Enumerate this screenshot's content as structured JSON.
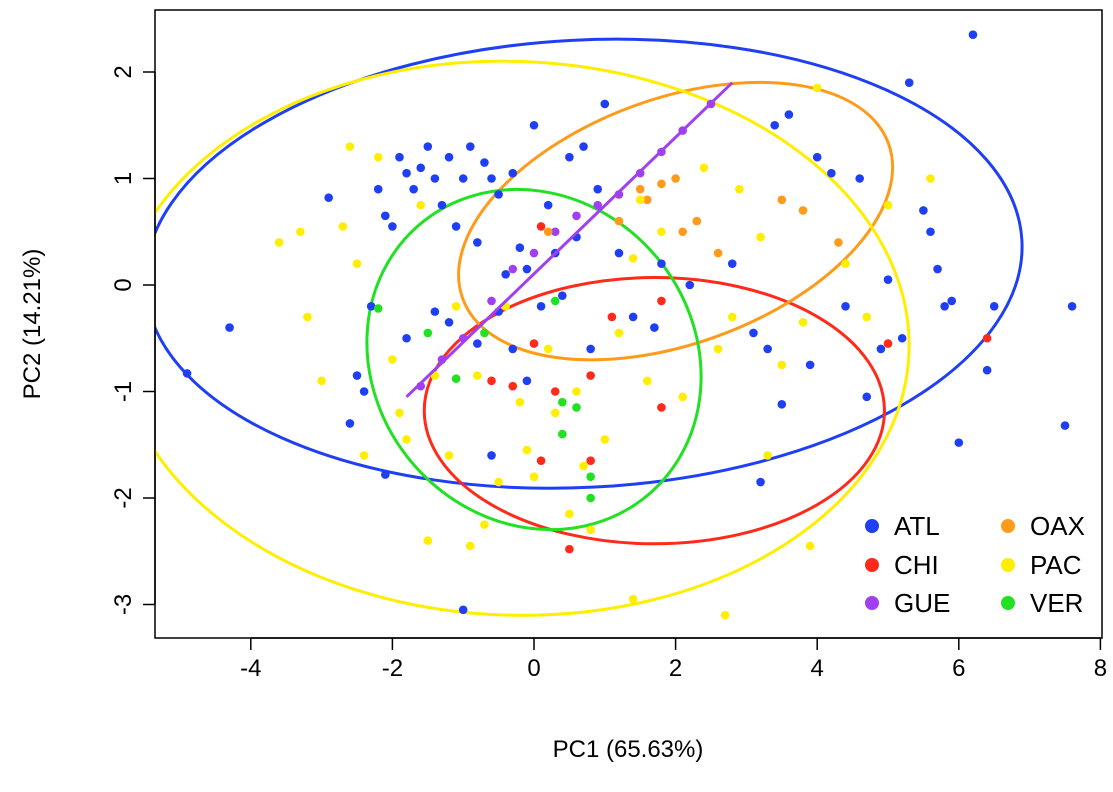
{
  "chart_data": {
    "type": "scatter",
    "title": "",
    "xlabel": "PC1 (65.63%)",
    "ylabel": "PC2 (14.21%)",
    "xlim": [
      -5.4,
      8.0
    ],
    "ylim": [
      -3.3,
      2.5
    ],
    "x_ticks": [
      -4,
      -2,
      0,
      2,
      4,
      6,
      8
    ],
    "y_ticks": [
      2,
      1,
      0,
      -1,
      -2,
      -3
    ],
    "grid": false,
    "legend_position": "bottom-right",
    "legend": [
      {
        "label": "ATL",
        "color": "#1f3ff5"
      },
      {
        "label": "CHI",
        "color": "#ff2a1a"
      },
      {
        "label": "GUE",
        "color": "#a040f0"
      },
      {
        "label": "OAX",
        "color": "#ff9a1a"
      },
      {
        "label": "PAC",
        "color": "#ffee00"
      },
      {
        "label": "VER",
        "color": "#22e022"
      }
    ],
    "series": [
      {
        "name": "ATL",
        "color": "#1f3ff5",
        "points": [
          [
            -4.9,
            -0.83
          ],
          [
            -4.3,
            -0.4
          ],
          [
            -2.9,
            0.82
          ],
          [
            -2.6,
            -1.3
          ],
          [
            -2.5,
            -0.85
          ],
          [
            -2.4,
            -1.0
          ],
          [
            -2.3,
            -0.2
          ],
          [
            -2.2,
            0.9
          ],
          [
            -2.1,
            0.65
          ],
          [
            -2.1,
            -1.78
          ],
          [
            -2.0,
            0.55
          ],
          [
            -1.9,
            1.2
          ],
          [
            -1.8,
            1.05
          ],
          [
            -1.8,
            -0.5
          ],
          [
            -1.7,
            0.9
          ],
          [
            -1.6,
            1.1
          ],
          [
            -1.5,
            1.3
          ],
          [
            -1.4,
            1.0
          ],
          [
            -1.4,
            -0.25
          ],
          [
            -1.3,
            0.75
          ],
          [
            -1.2,
            1.2
          ],
          [
            -1.2,
            -0.35
          ],
          [
            -1.1,
            0.55
          ],
          [
            -1.0,
            1.0
          ],
          [
            -1.0,
            -3.05
          ],
          [
            -0.9,
            1.3
          ],
          [
            -0.8,
            0.4
          ],
          [
            -0.8,
            -0.55
          ],
          [
            -0.7,
            1.15
          ],
          [
            -0.6,
            1.0
          ],
          [
            -0.6,
            -1.6
          ],
          [
            -0.5,
            0.85
          ],
          [
            -0.5,
            -0.25
          ],
          [
            -0.4,
            0.1
          ],
          [
            -0.3,
            1.05
          ],
          [
            -0.3,
            -0.6
          ],
          [
            -0.2,
            0.35
          ],
          [
            -0.1,
            0.15
          ],
          [
            -0.1,
            -0.9
          ],
          [
            0.0,
            1.5
          ],
          [
            0.1,
            -0.2
          ],
          [
            0.2,
            0.75
          ],
          [
            0.3,
            0.3
          ],
          [
            0.4,
            -0.1
          ],
          [
            0.5,
            1.2
          ],
          [
            0.6,
            0.45
          ],
          [
            0.7,
            1.3
          ],
          [
            0.8,
            -0.6
          ],
          [
            0.9,
            0.9
          ],
          [
            1.0,
            1.7
          ],
          [
            1.2,
            0.3
          ],
          [
            1.4,
            -0.3
          ],
          [
            1.7,
            -0.4
          ],
          [
            1.8,
            0.2
          ],
          [
            2.2,
            0.0
          ],
          [
            2.8,
            0.2
          ],
          [
            3.1,
            -0.45
          ],
          [
            3.2,
            -1.85
          ],
          [
            3.3,
            -0.6
          ],
          [
            3.4,
            1.5
          ],
          [
            3.5,
            -1.12
          ],
          [
            3.6,
            1.6
          ],
          [
            3.9,
            -0.75
          ],
          [
            4.0,
            1.2
          ],
          [
            4.2,
            1.05
          ],
          [
            4.4,
            -0.2
          ],
          [
            4.6,
            1.0
          ],
          [
            4.7,
            -1.05
          ],
          [
            4.9,
            -0.6
          ],
          [
            5.0,
            0.05
          ],
          [
            5.2,
            -0.5
          ],
          [
            5.3,
            1.9
          ],
          [
            5.5,
            0.7
          ],
          [
            5.6,
            0.5
          ],
          [
            5.7,
            0.15
          ],
          [
            5.8,
            -0.2
          ],
          [
            5.9,
            -0.15
          ],
          [
            6.0,
            -1.48
          ],
          [
            6.2,
            2.35
          ],
          [
            6.4,
            -0.8
          ],
          [
            6.5,
            -0.2
          ],
          [
            7.5,
            -1.32
          ],
          [
            7.6,
            -0.2
          ]
        ]
      },
      {
        "name": "CHI",
        "color": "#ff2a1a",
        "points": [
          [
            -0.6,
            -0.9
          ],
          [
            -0.3,
            -0.95
          ],
          [
            0.1,
            -1.65
          ],
          [
            0.0,
            -0.55
          ],
          [
            0.1,
            0.55
          ],
          [
            0.3,
            -1.0
          ],
          [
            0.5,
            -2.48
          ],
          [
            0.8,
            -1.65
          ],
          [
            0.8,
            -0.85
          ],
          [
            1.1,
            -0.3
          ],
          [
            1.8,
            -0.15
          ],
          [
            1.8,
            -1.15
          ],
          [
            5.0,
            -0.55
          ],
          [
            6.4,
            -0.5
          ]
        ]
      },
      {
        "name": "GUE",
        "color": "#a040f0",
        "points": [
          [
            -1.6,
            -0.95
          ],
          [
            -1.3,
            -0.7
          ],
          [
            -1.0,
            -0.5
          ],
          [
            -0.6,
            -0.15
          ],
          [
            -0.3,
            0.15
          ],
          [
            0.0,
            0.3
          ],
          [
            0.3,
            0.5
          ],
          [
            0.6,
            0.65
          ],
          [
            0.9,
            0.75
          ],
          [
            1.2,
            0.85
          ],
          [
            1.5,
            1.05
          ],
          [
            1.8,
            1.25
          ],
          [
            2.1,
            1.45
          ],
          [
            2.5,
            1.7
          ]
        ]
      },
      {
        "name": "OAX",
        "color": "#ff9a1a",
        "points": [
          [
            0.2,
            0.5
          ],
          [
            1.2,
            0.6
          ],
          [
            1.5,
            0.9
          ],
          [
            1.6,
            0.8
          ],
          [
            1.8,
            0.95
          ],
          [
            2.0,
            1.0
          ],
          [
            2.1,
            0.5
          ],
          [
            2.3,
            0.6
          ],
          [
            2.6,
            0.3
          ],
          [
            3.5,
            0.8
          ],
          [
            3.8,
            0.7
          ],
          [
            4.3,
            0.4
          ]
        ]
      },
      {
        "name": "PAC",
        "color": "#ffee00",
        "points": [
          [
            -3.6,
            0.4
          ],
          [
            -3.3,
            0.5
          ],
          [
            -3.2,
            -0.3
          ],
          [
            -3.0,
            -0.9
          ],
          [
            -2.7,
            0.55
          ],
          [
            -2.6,
            1.3
          ],
          [
            -2.5,
            0.2
          ],
          [
            -2.4,
            -1.6
          ],
          [
            -2.2,
            1.2
          ],
          [
            -2.0,
            -0.7
          ],
          [
            -1.9,
            -1.2
          ],
          [
            -1.8,
            -1.45
          ],
          [
            -1.6,
            0.75
          ],
          [
            -1.5,
            -2.4
          ],
          [
            -1.4,
            -0.85
          ],
          [
            -1.2,
            -1.6
          ],
          [
            -1.1,
            -0.2
          ],
          [
            -0.9,
            -2.45
          ],
          [
            -0.8,
            -0.85
          ],
          [
            -0.7,
            -2.25
          ],
          [
            -0.5,
            -1.85
          ],
          [
            -0.4,
            -0.2
          ],
          [
            -0.2,
            -1.1
          ],
          [
            -0.1,
            -1.55
          ],
          [
            0.0,
            -1.8
          ],
          [
            0.2,
            -0.6
          ],
          [
            0.3,
            -1.2
          ],
          [
            0.5,
            -2.15
          ],
          [
            0.6,
            -1.0
          ],
          [
            0.7,
            -1.7
          ],
          [
            0.8,
            -2.3
          ],
          [
            1.0,
            -1.45
          ],
          [
            1.2,
            -0.45
          ],
          [
            1.4,
            0.25
          ],
          [
            1.5,
            0.8
          ],
          [
            1.6,
            -0.9
          ],
          [
            1.8,
            0.5
          ],
          [
            2.1,
            -1.05
          ],
          [
            2.4,
            1.1
          ],
          [
            2.6,
            -0.6
          ],
          [
            2.8,
            -0.3
          ],
          [
            2.9,
            0.9
          ],
          [
            3.2,
            0.45
          ],
          [
            3.3,
            -1.6
          ],
          [
            3.5,
            -0.75
          ],
          [
            3.8,
            -0.35
          ],
          [
            3.9,
            -2.45
          ],
          [
            4.0,
            1.85
          ],
          [
            4.4,
            0.2
          ],
          [
            4.7,
            -0.3
          ],
          [
            5.0,
            0.75
          ],
          [
            5.6,
            1.0
          ],
          [
            1.4,
            -2.95
          ],
          [
            2.7,
            -3.1
          ]
        ]
      },
      {
        "name": "VER",
        "color": "#22e022",
        "points": [
          [
            -2.2,
            -0.22
          ],
          [
            -1.5,
            -0.45
          ],
          [
            -1.1,
            -0.88
          ],
          [
            -0.7,
            -0.45
          ],
          [
            0.3,
            -0.15
          ],
          [
            0.4,
            -1.1
          ],
          [
            0.6,
            -1.15
          ],
          [
            0.8,
            -2.0
          ],
          [
            0.8,
            -1.8
          ],
          [
            0.4,
            -1.4
          ]
        ]
      }
    ],
    "ellipses": [
      {
        "name": "ATL",
        "color": "#1f3ff5",
        "center": [
          0.7,
          0.2
        ],
        "semi_x": 6.2,
        "semi_y": 2.1,
        "angle_deg": 3
      },
      {
        "name": "CHI",
        "color": "#ff2a1a",
        "center": [
          1.7,
          -1.18
        ],
        "semi_x": 3.25,
        "semi_y": 1.25,
        "angle_deg": 0
      },
      {
        "name": "OAX",
        "color": "#ff9a1a",
        "center": [
          2.0,
          0.6
        ],
        "semi_x": 3.2,
        "semi_y": 1.15,
        "angle_deg": 20
      },
      {
        "name": "PAC",
        "color": "#ffee00",
        "center": [
          -0.3,
          -0.5
        ],
        "semi_x": 5.6,
        "semi_y": 2.6,
        "angle_deg": -2
      },
      {
        "name": "VER",
        "color": "#22e022",
        "center": [
          0.0,
          -0.7
        ],
        "semi_x": 2.5,
        "semi_y": 1.5,
        "angle_deg": -50
      }
    ],
    "lines": [
      {
        "name": "GUE",
        "color": "#a040f0",
        "from": [
          -1.8,
          -1.05
        ],
        "to": [
          2.8,
          1.9
        ]
      }
    ]
  }
}
